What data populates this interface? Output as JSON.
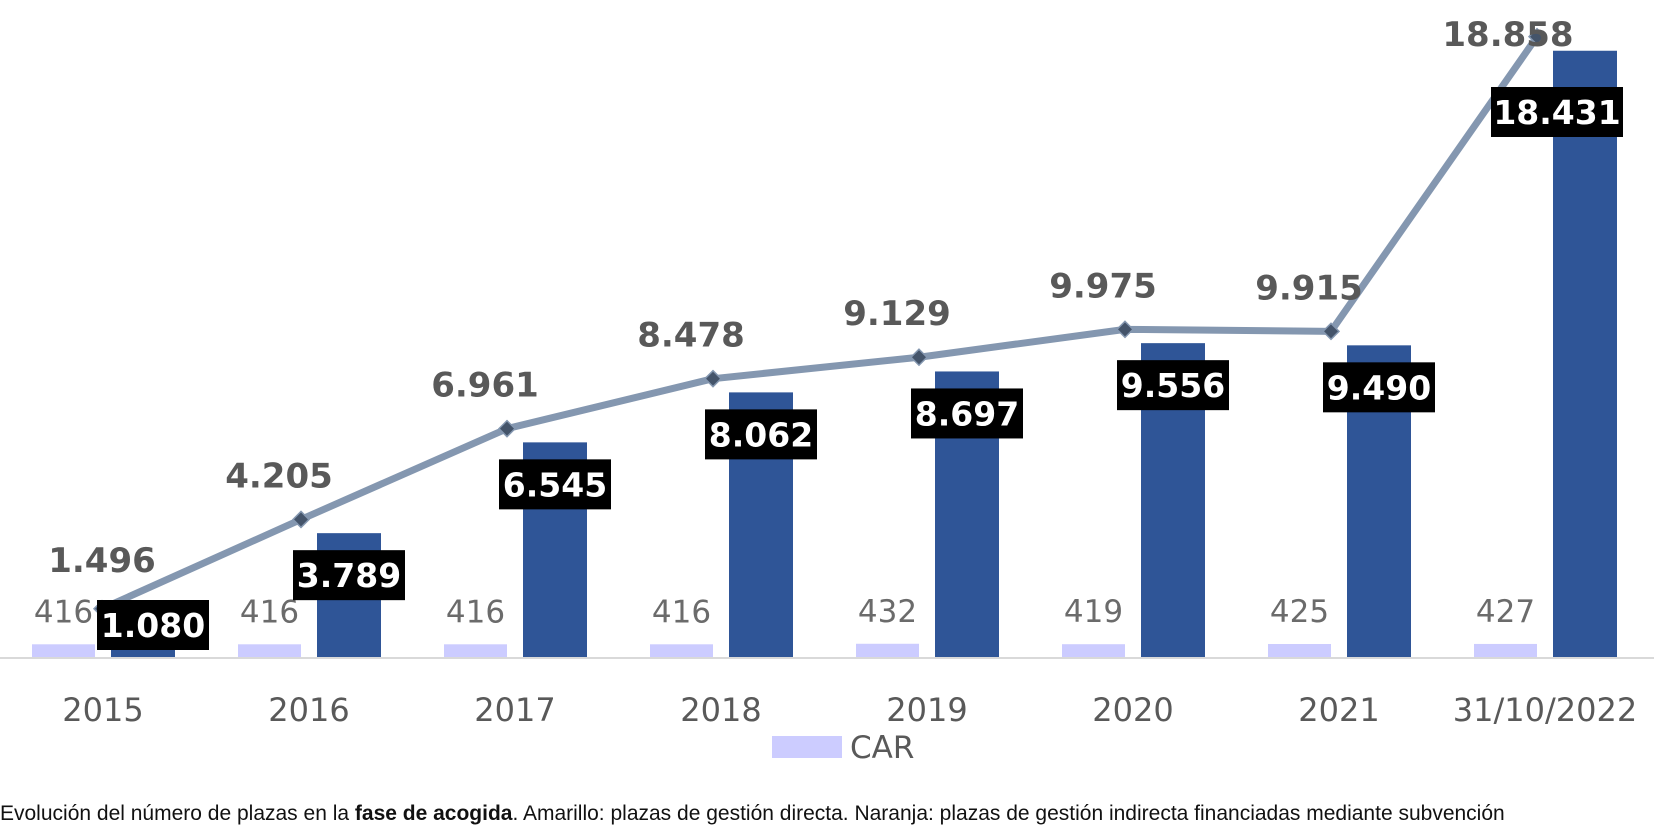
{
  "chart_data": {
    "type": "bar",
    "categories": [
      "2015",
      "2016",
      "2017",
      "2018",
      "2019",
      "2020",
      "2021",
      "31/10/2022"
    ],
    "series": [
      {
        "name": "CAR",
        "type": "bar",
        "color": "#ccccff",
        "values": [
          416,
          416,
          416,
          416,
          432,
          419,
          425,
          427
        ],
        "labels": [
          "416",
          "416",
          "416",
          "416",
          "432",
          "419",
          "425",
          "427"
        ]
      },
      {
        "type": "bar",
        "color": "#2f5597",
        "values": [
          1080,
          3789,
          6545,
          8062,
          8697,
          9556,
          9490,
          18431
        ],
        "labels": [
          "1.080",
          "3.789",
          "6.545",
          "8.062",
          "8.697",
          "9.556",
          "9.490",
          "18.431"
        ]
      },
      {
        "type": "line",
        "color": "#8497b0",
        "marker_color": "#44546a",
        "values": [
          1496,
          4205,
          6961,
          8478,
          9129,
          9975,
          9915,
          18858
        ],
        "labels": [
          "1.496",
          "4.205",
          "6.961",
          "8.478",
          "9.129",
          "9.975",
          "9.915",
          "18.858"
        ]
      }
    ],
    "ylim": [
      0,
      19000
    ],
    "grid": false,
    "legend": {
      "entries": [
        "CAR"
      ],
      "placement": "bottom"
    }
  },
  "caption": {
    "part1": "Evolución del número de plazas en la ",
    "bold": "fase de acogida",
    "part2": ". Amarillo: plazas de gestión directa. Naranja: plazas de gestión indirecta financiadas mediante subvención"
  }
}
